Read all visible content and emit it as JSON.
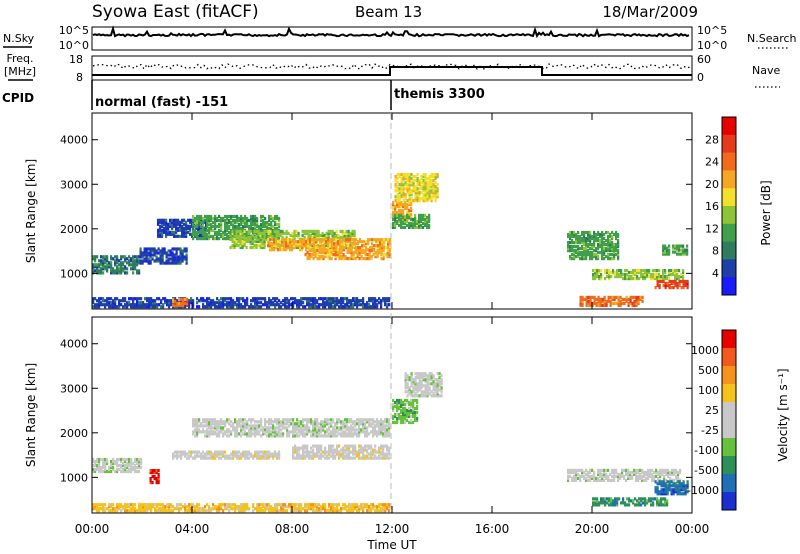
{
  "header": {
    "station": "Syowa East (fitACF)",
    "beam": "Beam 13",
    "date": "18/Mar/2009"
  },
  "nsky_panel": {
    "label": "N.Sky",
    "right_label": "N.Search",
    "left_ticks": [
      "10^5",
      "10^0"
    ],
    "right_ticks": [
      "10^5",
      "10^0"
    ]
  },
  "freq_panel": {
    "label_line1": "Freq.",
    "label_line2": "[MHz]",
    "right_label": "Nave",
    "left_ticks": [
      "18",
      "8"
    ],
    "right_ticks": [
      "60",
      "0"
    ]
  },
  "cpid_panel": {
    "label": "CPID",
    "segments": [
      {
        "start": 0,
        "text": "normal (fast) -151"
      },
      {
        "start": 12,
        "text": "themis 3300"
      }
    ]
  },
  "colors": {
    "power_scale": [
      "#1a1aff",
      "#1f3fa8",
      "#2e7d5e",
      "#3f9f4a",
      "#8fc43a",
      "#f2e02a",
      "#f5a623",
      "#f26b1d",
      "#e53b1c",
      "#e60000"
    ],
    "velocity_scale": [
      "#1a2fcf",
      "#1f6fb4",
      "#2e8f58",
      "#66c23a",
      "#c8c8c8",
      "#c8c8c8",
      "#f5c21c",
      "#f5921c",
      "#f25a1c",
      "#e60000"
    ]
  },
  "chart_data": [
    {
      "type": "heatmap",
      "name": "power",
      "ylabel": "Slant Range [km]",
      "yticks": [
        "4000",
        "3000",
        "2000",
        "1000"
      ],
      "yrange": [
        200,
        4600
      ],
      "xrange": [
        0,
        24
      ],
      "colorbar_label": "Power [dB]",
      "colorbar_ticks": [
        "28",
        "24",
        "20",
        "16",
        "12",
        "8",
        "4"
      ],
      "colorbar_range": [
        0,
        32
      ],
      "regions": [
        {
          "t0": 0.0,
          "t1": 1.9,
          "r0": 980,
          "r1": 1350,
          "level": 8
        },
        {
          "t0": 1.9,
          "t1": 3.8,
          "r0": 1200,
          "r1": 1550,
          "level": 6
        },
        {
          "t0": 2.6,
          "t1": 4.6,
          "r0": 1800,
          "r1": 2200,
          "level": 6
        },
        {
          "t0": 4.0,
          "t1": 7.5,
          "r0": 1750,
          "r1": 2250,
          "level": 10
        },
        {
          "t0": 5.5,
          "t1": 10.5,
          "r0": 1550,
          "r1": 1950,
          "level": 14
        },
        {
          "t0": 7.0,
          "t1": 11.9,
          "r0": 1500,
          "r1": 1750,
          "level": 22
        },
        {
          "t0": 8.5,
          "t1": 11.9,
          "r0": 1300,
          "r1": 1500,
          "level": 20
        },
        {
          "t0": 0.0,
          "t1": 11.9,
          "r0": 220,
          "r1": 420,
          "level": 5
        },
        {
          "t0": 3.2,
          "t1": 3.8,
          "r0": 250,
          "r1": 420,
          "level": 24
        },
        {
          "t0": 12.0,
          "t1": 12.8,
          "r0": 2200,
          "r1": 2600,
          "level": 20
        },
        {
          "t0": 12.1,
          "t1": 13.8,
          "r0": 2600,
          "r1": 3200,
          "level": 18
        },
        {
          "t0": 12.0,
          "t1": 13.5,
          "r0": 2000,
          "r1": 2300,
          "level": 12
        },
        {
          "t0": 19.0,
          "t1": 21.0,
          "r0": 1300,
          "r1": 1900,
          "level": 12
        },
        {
          "t0": 20.0,
          "t1": 23.6,
          "r0": 850,
          "r1": 1050,
          "level": 14
        },
        {
          "t0": 19.5,
          "t1": 22.0,
          "r0": 250,
          "r1": 450,
          "level": 24
        },
        {
          "t0": 22.5,
          "t1": 23.8,
          "r0": 650,
          "r1": 800,
          "level": 26
        },
        {
          "t0": 22.8,
          "t1": 23.8,
          "r0": 1400,
          "r1": 1600,
          "level": 12
        }
      ]
    },
    {
      "type": "heatmap",
      "name": "velocity",
      "ylabel": "Slant Range [km]",
      "xlabel": "Time UT",
      "xticks": [
        "00:00",
        "04:00",
        "08:00",
        "12:00",
        "16:00",
        "20:00",
        "00:00"
      ],
      "yticks": [
        "4000",
        "3000",
        "2000",
        "1000"
      ],
      "yrange": [
        200,
        4600
      ],
      "xrange": [
        0,
        24
      ],
      "colorbar_label": "Velocity [m s⁻¹]",
      "colorbar_ticks": [
        "1000",
        "500",
        "100",
        "25",
        "-25",
        "-100",
        "-500",
        "-1000"
      ],
      "regions": [
        {
          "t0": 0.0,
          "t1": 2.0,
          "r0": 1100,
          "r1": 1400,
          "level": 4
        },
        {
          "t0": 3.2,
          "t1": 7.5,
          "r0": 1400,
          "r1": 1550,
          "level": 5
        },
        {
          "t0": 4.0,
          "t1": 11.9,
          "r0": 1900,
          "r1": 2300,
          "level": 4
        },
        {
          "t0": 8.0,
          "t1": 11.9,
          "r0": 1400,
          "r1": 1700,
          "level": 5
        },
        {
          "t0": 2.3,
          "t1": 2.7,
          "r0": 850,
          "r1": 1150,
          "level": 9
        },
        {
          "t0": 0.0,
          "t1": 11.9,
          "r0": 220,
          "r1": 400,
          "level": 6
        },
        {
          "t0": 12.0,
          "t1": 13.0,
          "r0": 2200,
          "r1": 2700,
          "level": 3
        },
        {
          "t0": 12.5,
          "t1": 14.0,
          "r0": 2800,
          "r1": 3300,
          "level": 4
        },
        {
          "t0": 19.0,
          "t1": 23.5,
          "r0": 900,
          "r1": 1150,
          "level": 4
        },
        {
          "t0": 20.0,
          "t1": 23.0,
          "r0": 350,
          "r1": 500,
          "level": 2
        },
        {
          "t0": 22.5,
          "t1": 23.8,
          "r0": 600,
          "r1": 900,
          "level": 1
        }
      ]
    }
  ]
}
